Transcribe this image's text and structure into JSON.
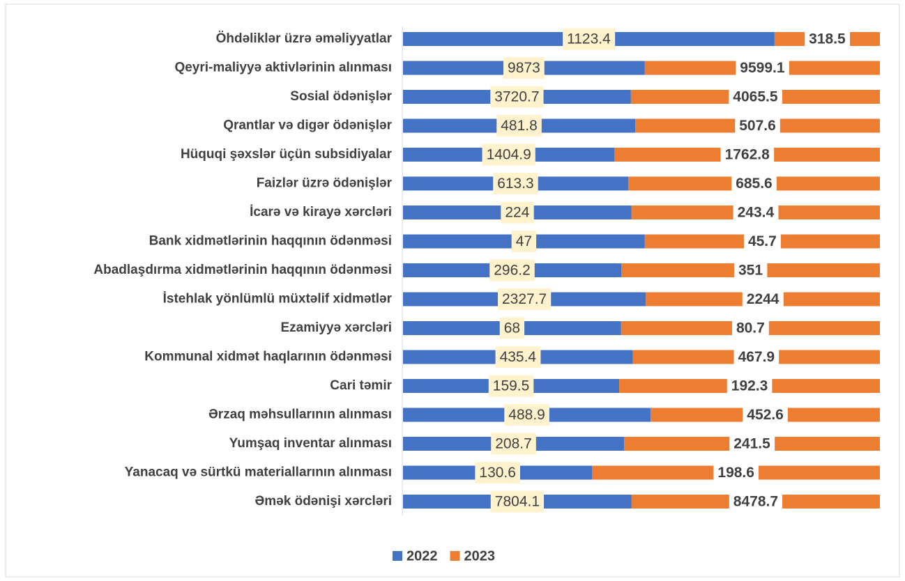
{
  "chart_data": {
    "type": "bar",
    "orientation": "horizontal",
    "stacking": "percent",
    "categories": [
      "Öhdəliklər üzrə əməliyyatlar",
      "Qeyri-maliyyə aktivlərinin alınması",
      "Sosial ödənişlər",
      "Qrantlar və digər ödənişlər",
      "Hüquqi şəxslər üçün subsidiyalar",
      "Faizlər üzrə ödənişlər",
      "İcarə və kirayə xərcləri",
      "Bank xidmətlərinin haqqının ödənməsi",
      "Abadlaşdırma xidmətlərinin haqqının ödənməsi",
      "İstehlak yönlümlü müxtəlif xidmətlər",
      "Ezamiyyə xərcləri",
      "Kommunal xidmət haqlarının ödənməsi",
      "Cari təmir",
      "Ərzaq məhsullarının alınması",
      "Yumşaq inventar alınması",
      "Yanacaq və sürtkü materiallarının alınması",
      "Əmək ödənişi xərcləri"
    ],
    "series": [
      {
        "name": "2022",
        "color": "#4472c4",
        "values": [
          1123.4,
          9873,
          3720.7,
          481.8,
          1404.9,
          613.3,
          224,
          47,
          296.2,
          2327.7,
          68,
          435.4,
          159.5,
          488.9,
          208.7,
          130.6,
          7804.1
        ]
      },
      {
        "name": "2023",
        "color": "#ed7d31",
        "values": [
          318.5,
          9599.1,
          4065.5,
          507.6,
          1762.8,
          685.6,
          243.4,
          45.7,
          351,
          2244,
          80.7,
          467.9,
          192.3,
          452.6,
          241.5,
          198.6,
          8478.7
        ]
      }
    ],
    "legend": "bottom"
  }
}
